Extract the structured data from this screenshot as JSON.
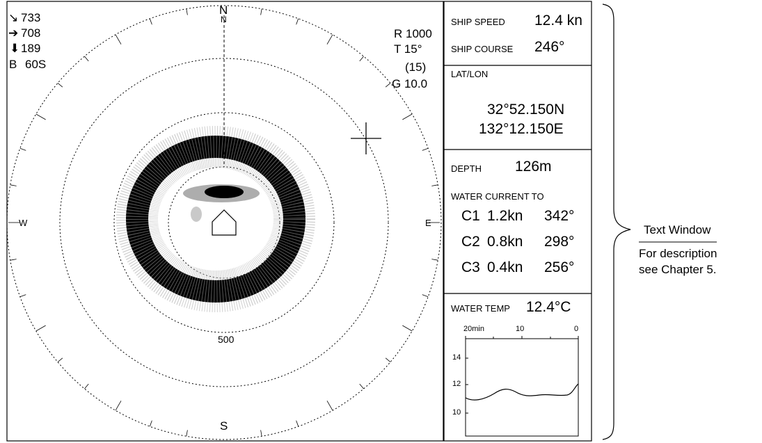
{
  "sonar": {
    "readouts": {
      "arrow1_icon": "arrow-down-right",
      "arrow1_value": "733",
      "arrow2_icon": "arrow-right",
      "arrow2_value": "708",
      "arrow3_icon": "arrow-down",
      "arrow3_value": "189",
      "b_label": "B",
      "b_value": "60S"
    },
    "settings": {
      "range": "R 1000",
      "tilt": "T 15°",
      "tilt_paren": "(15)",
      "gain": "G 10.0"
    },
    "compass": {
      "north": "N",
      "north_inner": "N",
      "south": "S",
      "east": "E",
      "west": "W"
    },
    "ring_label": "500"
  },
  "text_window": {
    "ship_speed_label": "SHIP SPEED",
    "ship_speed_value": "12.4 kn",
    "ship_course_label": "SHIP COURSE",
    "ship_course_value": "246°",
    "latlon_label": "LAT/LON",
    "lat": "32°52.150N",
    "lon": "132°12.150E",
    "depth_label": "DEPTH",
    "depth_value": "126m",
    "current_label": "WATER CURRENT TO",
    "currents": [
      {
        "id": "C1",
        "speed": "1.2kn",
        "dir": "342°"
      },
      {
        "id": "C2",
        "speed": "0.8kn",
        "dir": "298°"
      },
      {
        "id": "C3",
        "speed": "0.4kn",
        "dir": "256°"
      }
    ],
    "temp_label": "WATER TEMP",
    "temp_value": "12.4°C",
    "graph": {
      "time_labels": [
        "20min",
        "10",
        "0"
      ],
      "y_labels": [
        "14",
        "12",
        "10"
      ]
    }
  },
  "callout": {
    "title": "Text Window",
    "desc1": "For description",
    "desc2": "see Chapter 5."
  }
}
